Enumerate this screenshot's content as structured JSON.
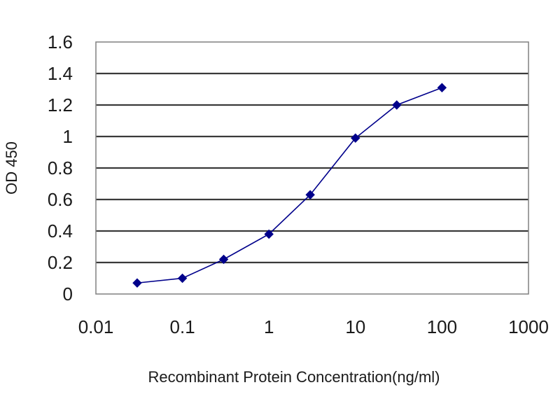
{
  "chart_data": {
    "type": "line",
    "title": "",
    "xlabel": "Recombinant Protein Concentration(ng/ml)",
    "ylabel": "OD 450",
    "xscale": "log",
    "xlim": [
      0.01,
      1000
    ],
    "ylim": [
      0,
      1.6
    ],
    "x_ticks": [
      "0.01",
      "0.1",
      "1",
      "10",
      "100",
      "1000"
    ],
    "y_ticks": [
      "0",
      "0.2",
      "0.4",
      "0.6",
      "0.8",
      "1",
      "1.2",
      "1.4",
      "1.6"
    ],
    "grid": "horizontal",
    "plot_background": "#ffffff",
    "series": [
      {
        "color": "#00008b",
        "marker": "diamond",
        "x": [
          0.03,
          0.1,
          0.3,
          1,
          3,
          10,
          30,
          100
        ],
        "y": [
          0.07,
          0.1,
          0.22,
          0.38,
          0.63,
          0.99,
          1.2,
          1.31
        ]
      }
    ]
  }
}
